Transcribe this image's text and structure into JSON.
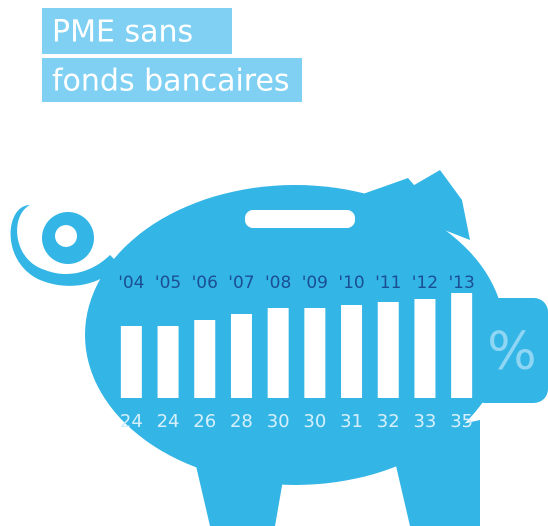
{
  "chart_data": {
    "type": "bar",
    "title": [
      "PME sans",
      "fonds bancaires"
    ],
    "categories": [
      "'04",
      "'05",
      "'06",
      "'07",
      "'08",
      "'09",
      "'10",
      "'11",
      "'12",
      "'13"
    ],
    "values": [
      24,
      24,
      26,
      28,
      30,
      30,
      31,
      32,
      33,
      35
    ],
    "unit": "%",
    "color": "#ffffff"
  }
}
